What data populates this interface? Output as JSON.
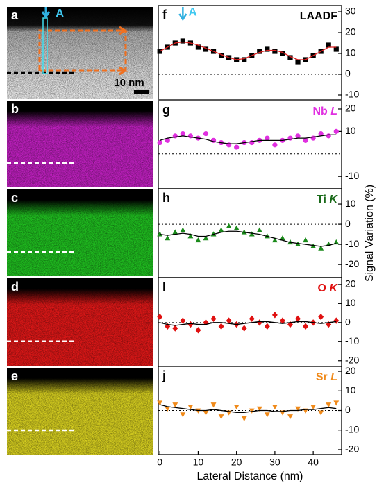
{
  "image_panels": [
    {
      "label": "a"
    },
    {
      "label": "b"
    },
    {
      "label": "c"
    },
    {
      "label": "d"
    },
    {
      "label": "e"
    }
  ],
  "scale_bar": "10 nm",
  "annotation": "A",
  "chart_data": [
    {
      "type": "scatter",
      "panel": "f",
      "label_element": "LAADF",
      "label_line": "",
      "annotation": "A",
      "annotation_x": 6,
      "color": "#000000",
      "fit_color": "#e02020",
      "label_color": "#000000",
      "marker": "square",
      "x": [
        0,
        2,
        4,
        6,
        8,
        10,
        12,
        14,
        16,
        18,
        20,
        22,
        24,
        26,
        28,
        30,
        32,
        34,
        36,
        38,
        40,
        42,
        44,
        46
      ],
      "values": [
        11,
        13,
        15,
        16,
        15,
        13,
        12,
        11,
        9,
        8,
        7,
        7,
        9,
        11,
        12,
        11,
        10,
        8,
        6,
        7,
        9,
        11,
        14,
        12
      ],
      "fit": [
        11,
        13,
        15,
        15.5,
        15,
        14,
        12.5,
        11,
        9.5,
        8,
        7,
        7.5,
        9,
        10.5,
        11.5,
        11.5,
        10.5,
        8.5,
        7,
        7,
        9,
        11,
        13,
        13
      ],
      "xlim": [
        -0.4,
        47.4
      ],
      "ylim": [
        -12,
        33
      ],
      "yticks": [
        -10,
        0,
        10,
        20,
        30
      ]
    },
    {
      "type": "scatter",
      "panel": "g",
      "label_element": "Nb",
      "label_line": "L",
      "color": "#e030e0",
      "fit_color": "#000000",
      "label_color": "#e030e0",
      "marker": "circle",
      "x": [
        0,
        2,
        4,
        6,
        8,
        10,
        12,
        14,
        16,
        18,
        20,
        22,
        24,
        26,
        28,
        30,
        32,
        34,
        36,
        38,
        40,
        42,
        44,
        46
      ],
      "values": [
        5,
        6,
        8,
        9,
        8,
        7,
        9,
        6,
        5,
        4,
        3,
        5,
        5,
        6,
        7,
        4,
        6,
        7,
        8,
        6,
        7,
        9,
        8,
        10
      ],
      "fit": [
        6,
        7,
        7.5,
        8,
        7.5,
        7,
        6.5,
        5.5,
        5,
        4.5,
        4.5,
        5,
        5.5,
        6,
        6,
        6,
        6,
        6.5,
        7,
        7,
        7.5,
        8,
        8.5,
        8.5
      ],
      "xlim": [
        -0.4,
        47.4
      ],
      "ylim": [
        -15.5,
        23.7
      ],
      "yticks": [
        -10,
        10,
        20
      ]
    },
    {
      "type": "scatter",
      "panel": "h",
      "label_element": "Ti",
      "label_line": "K",
      "ylabel": "Signal Variation (%)",
      "color": "#1a8a1a",
      "fit_color": "#000000",
      "label_color": "#1a6a1a",
      "marker": "triangle",
      "x": [
        0,
        2,
        4,
        6,
        8,
        10,
        12,
        14,
        16,
        18,
        20,
        22,
        24,
        26,
        28,
        30,
        32,
        34,
        36,
        38,
        40,
        42,
        44,
        46
      ],
      "values": [
        -5,
        -7,
        -4,
        -3,
        -6,
        -8,
        -7,
        -5,
        -3,
        -1,
        -2,
        -4,
        -5,
        -3,
        -6,
        -8,
        -7,
        -9,
        -10,
        -8,
        -11,
        -12,
        -10,
        -9
      ],
      "fit": [
        -5,
        -5.5,
        -5,
        -4.5,
        -5,
        -6,
        -6,
        -5,
        -4,
        -3.5,
        -3.5,
        -4,
        -4.5,
        -5,
        -6,
        -7,
        -8,
        -9,
        -9.5,
        -10,
        -10.5,
        -11,
        -10.5,
        -9.5
      ],
      "xlim": [
        -0.4,
        47.4
      ],
      "ylim": [
        -26.5,
        17.6
      ],
      "yticks": [
        -20,
        -10,
        0,
        10
      ]
    },
    {
      "type": "scatter",
      "panel": "I",
      "label_element": "O",
      "label_line": "K",
      "color": "#e01010",
      "fit_color": "#000000",
      "label_color": "#e01010",
      "marker": "diamond",
      "x": [
        0,
        2,
        4,
        6,
        8,
        10,
        12,
        14,
        16,
        18,
        20,
        22,
        24,
        26,
        28,
        30,
        32,
        34,
        36,
        38,
        40,
        42,
        44,
        46
      ],
      "values": [
        3,
        -2,
        -3,
        1,
        -1,
        -4,
        0,
        2,
        -2,
        1,
        -1,
        -3,
        2,
        0,
        -2,
        4,
        1,
        -1,
        2,
        -2,
        0,
        3,
        -1,
        1
      ],
      "fit": [
        0,
        -1,
        -1.5,
        -1,
        -0.5,
        -1,
        -1,
        0,
        0,
        -0.5,
        -1,
        -0.5,
        0,
        0.5,
        0.5,
        0,
        -0.5,
        0,
        0.5,
        0.5,
        0,
        -0.5,
        0,
        0.5
      ],
      "xlim": [
        -0.4,
        47.4
      ],
      "ylim": [
        -23,
        23.6
      ],
      "yticks": [
        -20,
        -10,
        0,
        10,
        20
      ]
    },
    {
      "type": "scatter",
      "panel": "j",
      "label_element": "Sr",
      "label_line": "L",
      "xlabel": "Lateral Distance (nm)",
      "color": "#f08a1a",
      "fit_color": "#000000",
      "label_color": "#f08a1a",
      "marker": "triangle-down",
      "x": [
        0,
        2,
        4,
        6,
        8,
        10,
        12,
        14,
        16,
        18,
        20,
        22,
        24,
        26,
        28,
        30,
        32,
        34,
        36,
        38,
        40,
        42,
        44,
        46
      ],
      "values": [
        4,
        1,
        3,
        -2,
        2,
        0,
        -1,
        3,
        -3,
        -1,
        2,
        -4,
        0,
        1,
        -2,
        2,
        -1,
        -3,
        1,
        0,
        2,
        -1,
        3,
        4
      ],
      "fit": [
        3,
        2,
        1.5,
        1,
        0.5,
        0,
        0,
        0.5,
        0,
        -0.5,
        -1,
        -1,
        -0.5,
        0,
        0,
        -0.5,
        -0.5,
        0,
        0,
        0.5,
        0.5,
        1,
        1.5,
        1
      ],
      "xlim": [
        -0.4,
        47.4
      ],
      "ylim": [
        -22.5,
        22.5
      ],
      "yticks": [
        -20,
        -10,
        0,
        10,
        20
      ],
      "xticks": [
        0,
        10,
        20,
        30,
        40
      ]
    }
  ]
}
